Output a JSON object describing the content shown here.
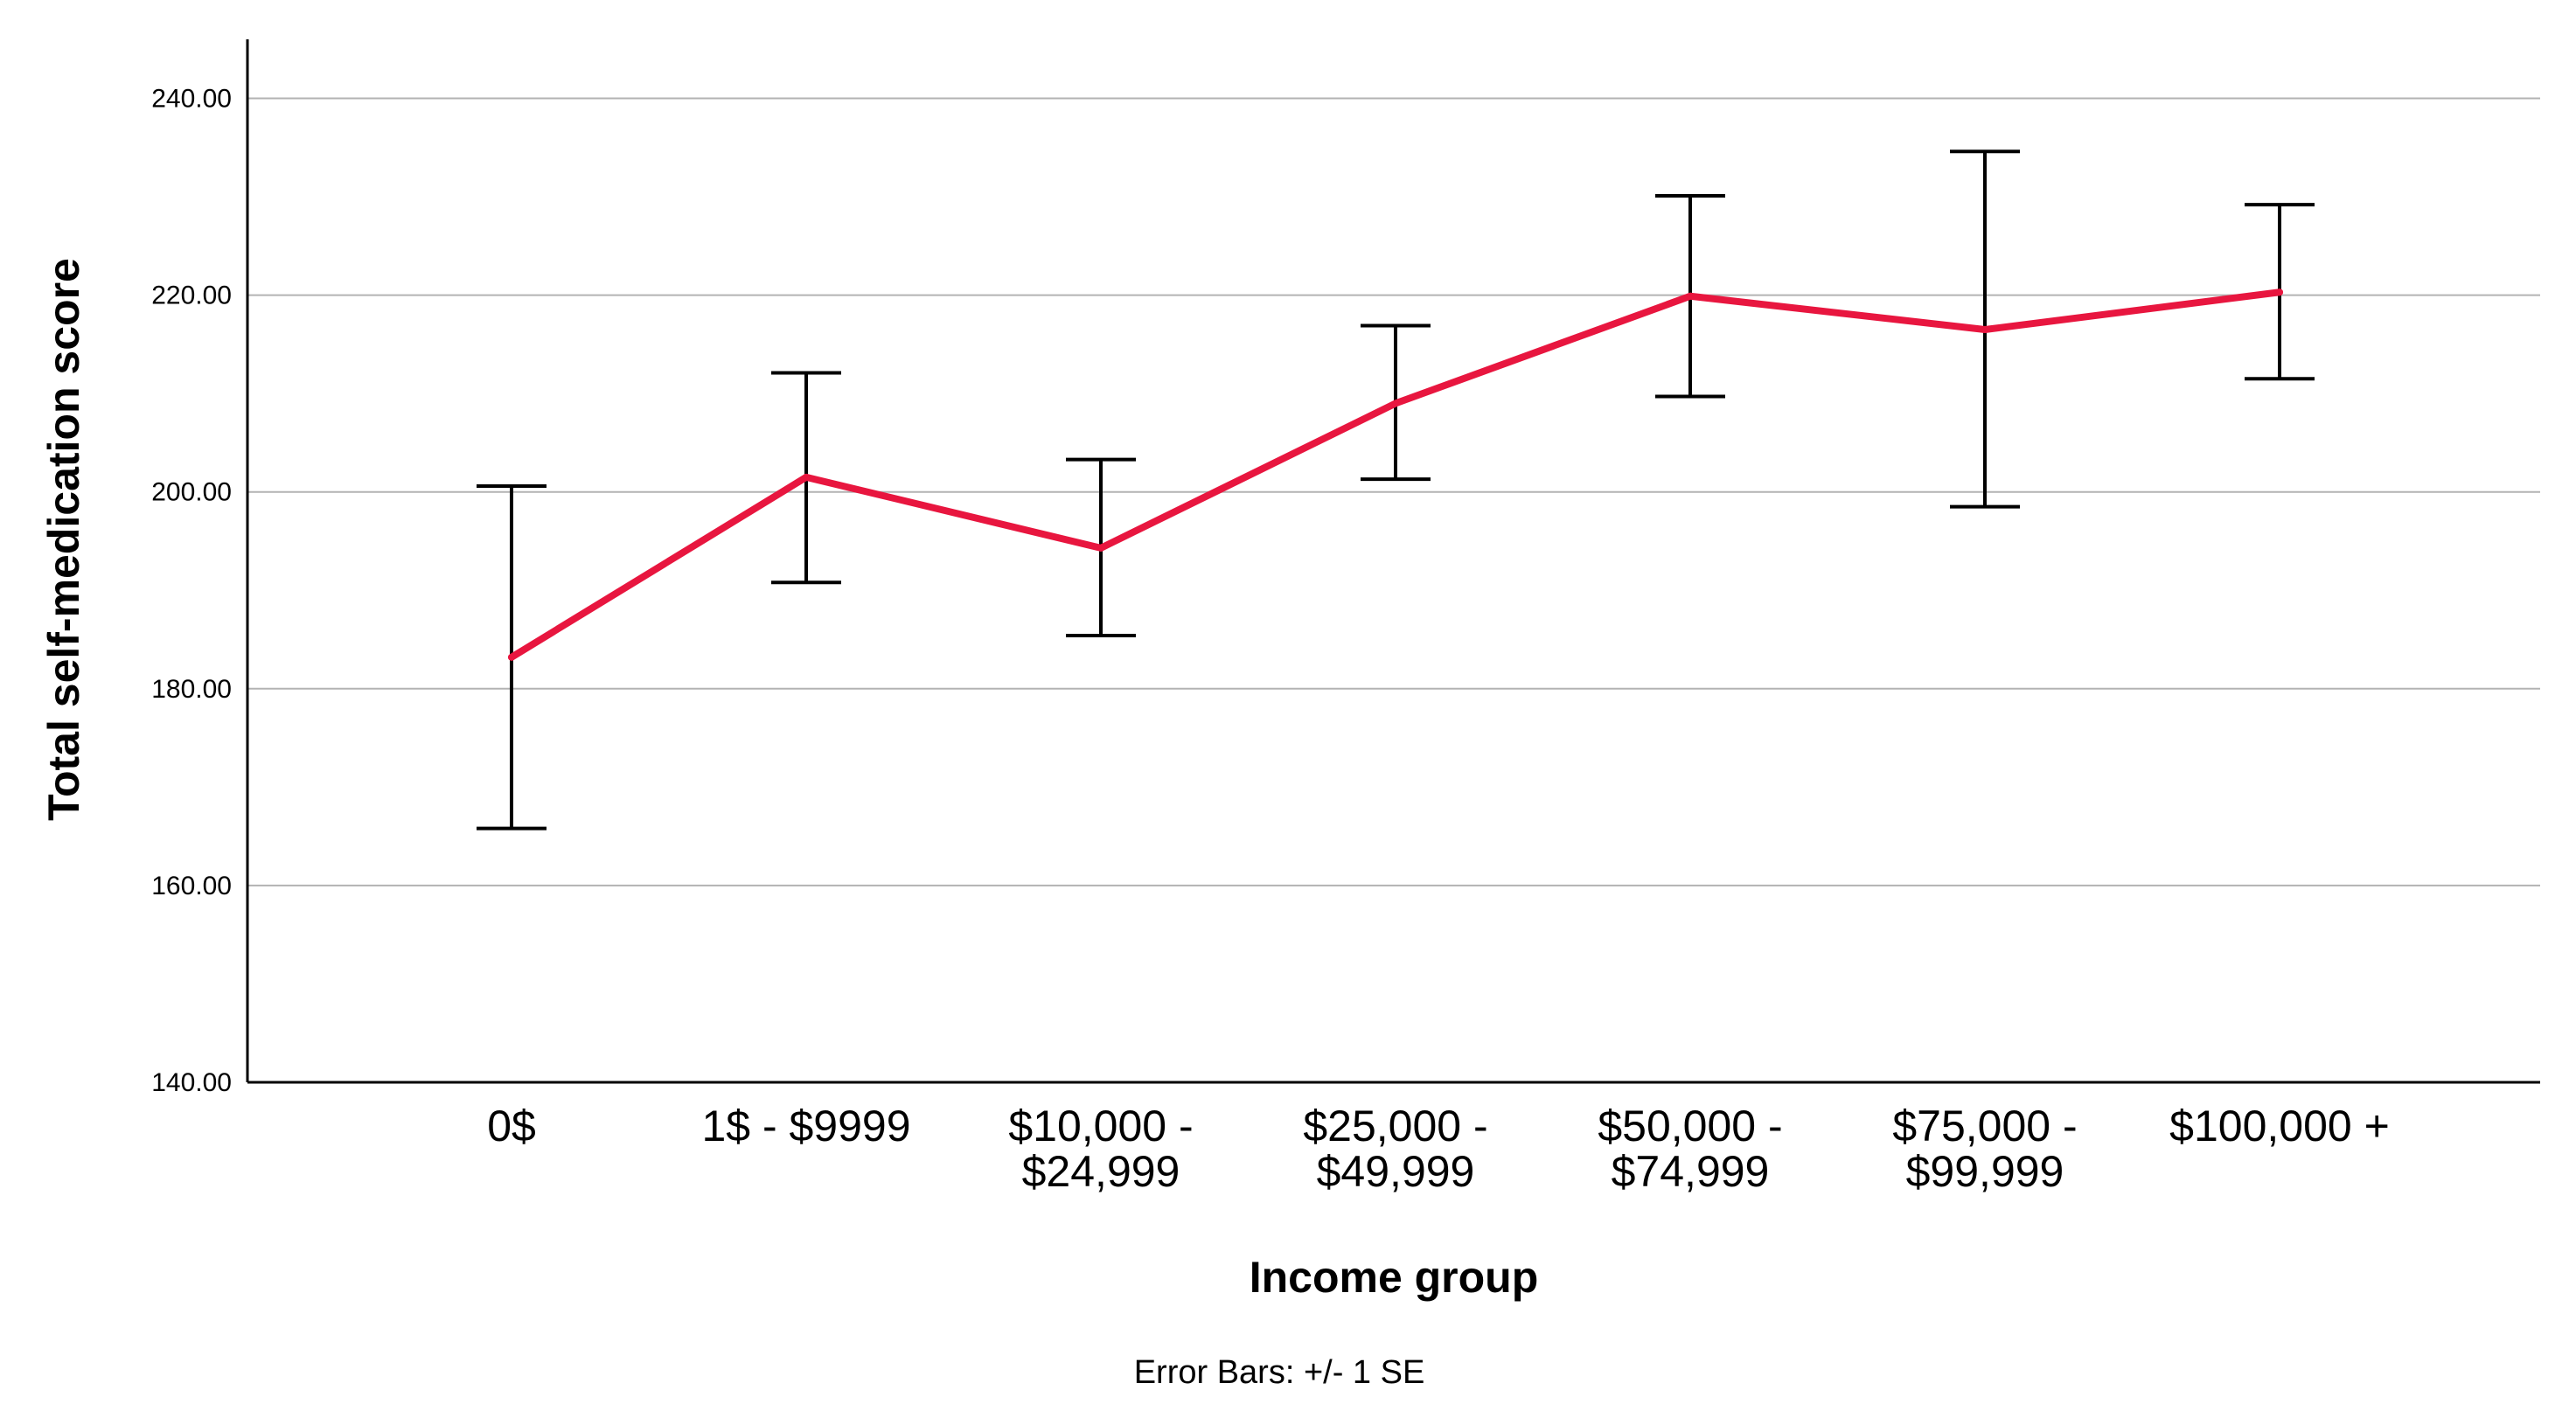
{
  "chart_data": {
    "type": "line",
    "categories": [
      [
        "0$"
      ],
      [
        "1$ - $9999"
      ],
      [
        "$10,000 -",
        "$24,999"
      ],
      [
        "$25,000 -",
        "$49,999"
      ],
      [
        "$50,000 -",
        "$74,999"
      ],
      [
        "$75,000 -",
        "$99,999"
      ],
      [
        "$100,000 +"
      ]
    ],
    "values": [
      183.2,
      201.5,
      194.3,
      209.0,
      219.9,
      216.5,
      220.3
    ],
    "error_low": [
      165.8,
      190.8,
      185.4,
      201.3,
      209.7,
      198.5,
      211.5
    ],
    "error_high": [
      200.6,
      212.1,
      203.3,
      216.9,
      230.1,
      234.6,
      229.2
    ],
    "xlabel": "Income group",
    "ylabel": "Total self-medication score",
    "ylim": [
      140,
      246
    ],
    "yticks": [
      "140.00",
      "160.00",
      "180.00",
      "200.00",
      "220.00",
      "240.00"
    ],
    "ytick_values": [
      140,
      160,
      180,
      200,
      220,
      240
    ],
    "grid": true,
    "line_color": "#e8163f",
    "error_bar_color": "#000000",
    "footnote": "Error Bars: +/- 1 SE"
  }
}
